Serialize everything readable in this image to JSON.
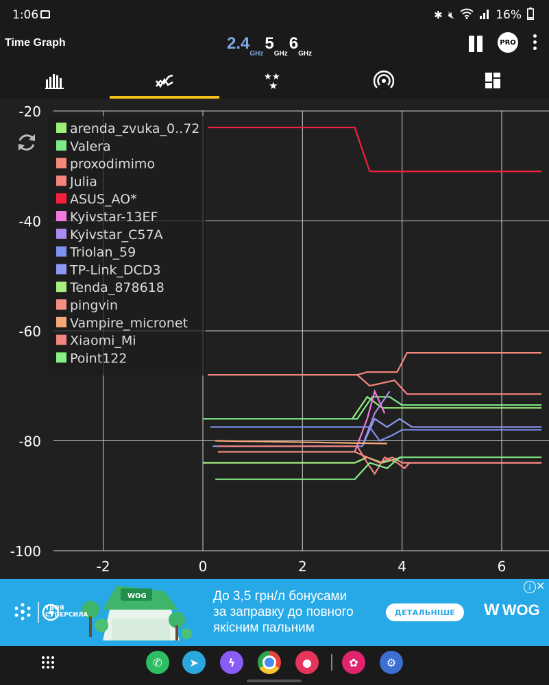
{
  "status_bar": {
    "time": "1:06",
    "battery": "16%"
  },
  "app_bar": {
    "title": "Time Graph",
    "bands": [
      {
        "value": "2.4",
        "unit": "GHz",
        "active": true
      },
      {
        "value": "5",
        "unit": "GHz",
        "active": false
      },
      {
        "value": "6",
        "unit": "GHz",
        "active": false
      }
    ],
    "pro_label": "PRO"
  },
  "tabs": [
    {
      "icon": "bar-chart-icon",
      "active": false
    },
    {
      "icon": "time-graph-icon",
      "active": true
    },
    {
      "icon": "stars-rating-icon",
      "active": false
    },
    {
      "icon": "signal-radar-icon",
      "active": false
    },
    {
      "icon": "dashboard-tiles-icon",
      "active": false
    }
  ],
  "chart_data": {
    "type": "line",
    "xlabel": "",
    "ylabel": "",
    "xlim": [
      -3.0,
      6.95
    ],
    "ylim": [
      -100,
      -20
    ],
    "x_ticks": [
      -2,
      0,
      2,
      4,
      6
    ],
    "y_ticks": [
      -20,
      -40,
      -60,
      -80,
      -100
    ],
    "grid": true,
    "legend_position": "top-left",
    "series": [
      {
        "name": "arenda_zvuka_0..72",
        "color": "#9cf07a",
        "points": [
          [
            3.0,
            -76
          ],
          [
            3.3,
            -72
          ],
          [
            3.6,
            -74
          ],
          [
            4.0,
            -74
          ],
          [
            6.8,
            -74
          ]
        ]
      },
      {
        "name": "Valera",
        "color": "#7ced86",
        "points": [
          [
            0.0,
            -76
          ],
          [
            3.1,
            -76
          ],
          [
            3.4,
            -72
          ],
          [
            3.75,
            -72
          ],
          [
            4.0,
            -73.5
          ],
          [
            6.8,
            -73.5
          ]
        ]
      },
      {
        "name": "proxodimimo",
        "color": "#f58a7c",
        "points": [
          [
            0.1,
            -68
          ],
          [
            3.1,
            -68
          ],
          [
            3.3,
            -67.5
          ],
          [
            3.9,
            -67.5
          ],
          [
            4.1,
            -64
          ],
          [
            6.8,
            -64
          ]
        ]
      },
      {
        "name": "Julia",
        "color": "#f7857e",
        "points": [
          [
            0.1,
            -68
          ],
          [
            3.1,
            -68
          ],
          [
            3.35,
            -70
          ],
          [
            3.85,
            -69
          ],
          [
            4.1,
            -71.5
          ],
          [
            6.8,
            -71.5
          ]
        ]
      },
      {
        "name": "ASUS_AO*",
        "color": "#f5203d",
        "points": [
          [
            0.1,
            -23
          ],
          [
            3.05,
            -23
          ],
          [
            3.35,
            -31
          ],
          [
            6.8,
            -31
          ]
        ]
      },
      {
        "name": "Kyivstar-13EF",
        "color": "#f07ae0",
        "points": [
          [
            3.05,
            -82
          ],
          [
            3.3,
            -76
          ],
          [
            3.45,
            -71
          ],
          [
            3.65,
            -75
          ]
        ]
      },
      {
        "name": "Kyivstar_C57A",
        "color": "#a88af0",
        "points": [
          [
            3.2,
            -81
          ],
          [
            3.45,
            -75
          ],
          [
            3.75,
            -71
          ]
        ]
      },
      {
        "name": "Triolan_59",
        "color": "#7d92f0",
        "points": [
          [
            0.15,
            -77.5
          ],
          [
            3.1,
            -77.5
          ],
          [
            3.35,
            -77.5
          ],
          [
            3.55,
            -80
          ],
          [
            3.8,
            -79
          ],
          [
            4.0,
            -78
          ],
          [
            6.8,
            -78
          ]
        ]
      },
      {
        "name": "TP-Link_DCD3",
        "color": "#8d99f2",
        "points": [
          [
            0.2,
            -81
          ],
          [
            3.05,
            -81
          ],
          [
            3.2,
            -81
          ],
          [
            3.45,
            -76
          ],
          [
            3.7,
            -77.5
          ],
          [
            3.95,
            -76
          ],
          [
            4.2,
            -77.5
          ],
          [
            6.8,
            -77.5
          ]
        ]
      },
      {
        "name": "Tenda_878618",
        "color": "#a8f07e",
        "points": [
          [
            0.0,
            -84
          ],
          [
            3.05,
            -84
          ],
          [
            3.3,
            -83
          ],
          [
            3.6,
            -84
          ],
          [
            4.0,
            -83
          ],
          [
            6.8,
            -83
          ]
        ]
      },
      {
        "name": "pingvin",
        "color": "#f58f83",
        "points": [
          [
            0.3,
            -82
          ],
          [
            3.05,
            -82
          ],
          [
            3.3,
            -83
          ],
          [
            3.55,
            -84
          ],
          [
            3.8,
            -83
          ],
          [
            4.0,
            -84
          ],
          [
            6.8,
            -84
          ]
        ]
      },
      {
        "name": "Vampire_micronet",
        "color": "#f7a87a",
        "points": [
          [
            0.25,
            -80
          ],
          [
            3.7,
            -80.5
          ]
        ]
      },
      {
        "name": "Xiaomi_Mi",
        "color": "#f58580",
        "points": [
          [
            0.3,
            -81
          ],
          [
            3.1,
            -81
          ],
          [
            3.3,
            -84
          ],
          [
            3.45,
            -86
          ],
          [
            3.65,
            -83
          ],
          [
            3.9,
            -84
          ],
          [
            4.05,
            -85
          ],
          [
            4.15,
            -84
          ],
          [
            6.8,
            -84
          ]
        ]
      },
      {
        "name": "Point122",
        "color": "#86f086",
        "points": [
          [
            0.25,
            -87
          ],
          [
            3.05,
            -87
          ],
          [
            3.35,
            -84
          ],
          [
            3.7,
            -85
          ],
          [
            3.95,
            -83
          ],
          [
            6.8,
            -83
          ]
        ]
      }
    ]
  },
  "ad": {
    "headline_1": "До 3,5 грн/л бонусами",
    "headline_2": "за заправку до повного",
    "headline_3": "якісним пальним",
    "cta": "ДЕТАЛЬНІШЕ",
    "brand_1": "ТВОЯ",
    "brand_2": "СУПЕРСИЛА",
    "advertiser": "WOG",
    "storefront_sign": "WOG",
    "info": "i",
    "close": "✕"
  },
  "dock": {
    "apps": [
      {
        "icon": "phone-icon",
        "color": "#2dbd63",
        "glyph": "✆"
      },
      {
        "icon": "telegram-icon",
        "color": "#2aa7dd",
        "glyph": "➤"
      },
      {
        "icon": "messenger-icon",
        "color": "#8a5cf6",
        "glyph": "ϟ"
      },
      {
        "icon": "chrome-icon",
        "color": "#e8453c",
        "glyph": ""
      },
      {
        "icon": "screen-recorder-icon",
        "color": "#e7345b",
        "glyph": "●"
      },
      {
        "icon": "blossom-app-icon",
        "color": "#e0246e",
        "glyph": "✿"
      },
      {
        "icon": "settings-icon",
        "color": "#3d6fd1",
        "glyph": "⚙"
      }
    ]
  }
}
